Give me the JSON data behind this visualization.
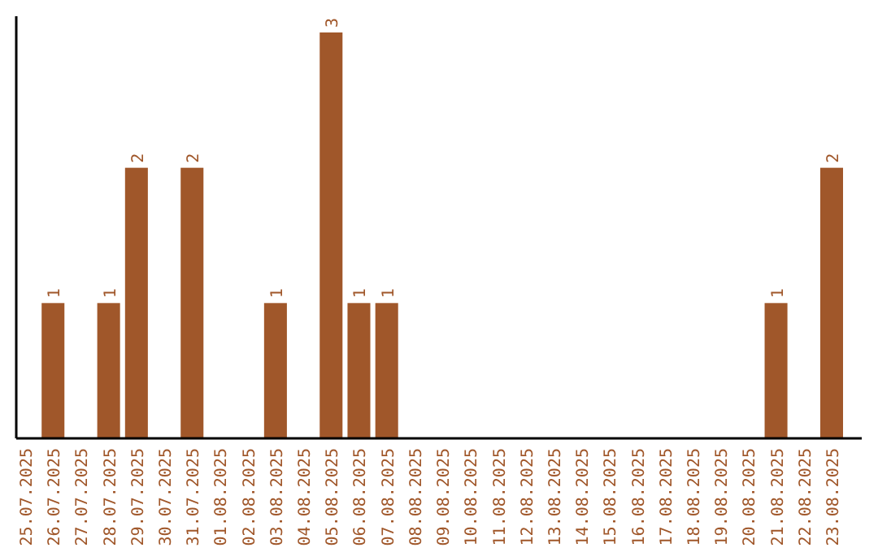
{
  "chart_data": {
    "type": "bar",
    "categories": [
      "25.07.2025",
      "26.07.2025",
      "27.07.2025",
      "28.07.2025",
      "29.07.2025",
      "30.07.2025",
      "31.07.2025",
      "01.08.2025",
      "02.08.2025",
      "03.08.2025",
      "04.08.2025",
      "05.08.2025",
      "06.08.2025",
      "07.08.2025",
      "08.08.2025",
      "09.08.2025",
      "10.08.2025",
      "11.08.2025",
      "12.08.2025",
      "13.08.2025",
      "14.08.2025",
      "15.08.2025",
      "16.08.2025",
      "17.08.2025",
      "18.08.2025",
      "19.08.2025",
      "20.08.2025",
      "21.08.2025",
      "22.08.2025",
      "23.08.2025"
    ],
    "values": [
      0,
      1,
      0,
      1,
      2,
      0,
      2,
      0,
      0,
      1,
      0,
      3,
      1,
      1,
      0,
      0,
      0,
      0,
      0,
      0,
      0,
      0,
      0,
      0,
      0,
      0,
      0,
      1,
      0,
      2
    ],
    "value_labels": [
      null,
      "1",
      null,
      "1",
      "2",
      null,
      "2",
      null,
      null,
      "1",
      null,
      "3",
      "1",
      "1",
      null,
      null,
      null,
      null,
      null,
      null,
      null,
      null,
      null,
      null,
      null,
      null,
      null,
      "1",
      null,
      "2"
    ],
    "color": "#a0572a",
    "tick_labels": "x"
  }
}
